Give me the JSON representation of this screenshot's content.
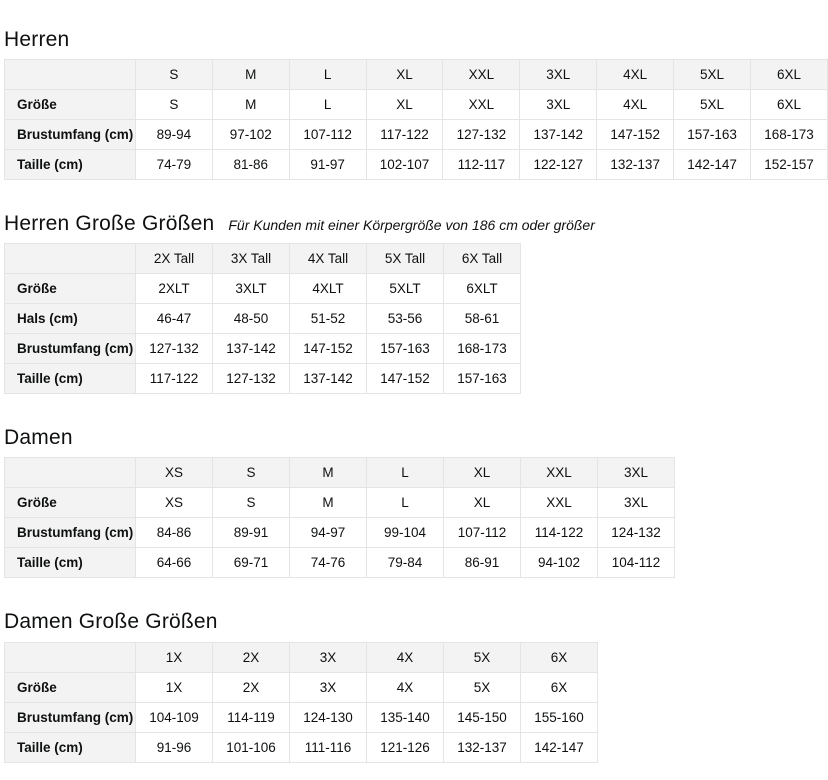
{
  "colors": {
    "header_bg": "#f3f3f3",
    "border": "#e4e4e4",
    "text": "#0f1111",
    "page_bg": "#ffffff"
  },
  "tables": [
    {
      "title": "Herren",
      "subtitle": "",
      "columns": [
        "S",
        "M",
        "L",
        "XL",
        "XXL",
        "3XL",
        "4XL",
        "5XL",
        "6XL"
      ],
      "rows": [
        {
          "label": "Größe",
          "values": [
            "S",
            "M",
            "L",
            "XL",
            "XXL",
            "3XL",
            "4XL",
            "5XL",
            "6XL"
          ]
        },
        {
          "label": "Brustumfang (cm)",
          "values": [
            "89-94",
            "97-102",
            "107-112",
            "117-122",
            "127-132",
            "137-142",
            "147-152",
            "157-163",
            "168-173"
          ]
        },
        {
          "label": "Taille (cm)",
          "values": [
            "74-79",
            "81-86",
            "91-97",
            "102-107",
            "112-117",
            "122-127",
            "132-137",
            "142-147",
            "152-157"
          ]
        }
      ]
    },
    {
      "title": "Herren Große Größen",
      "subtitle": "Für Kunden mit einer Körpergröße von 186 cm oder größer",
      "columns": [
        "2X Tall",
        "3X Tall",
        "4X Tall",
        "5X Tall",
        "6X Tall"
      ],
      "rows": [
        {
          "label": "Größe",
          "values": [
            "2XLT",
            "3XLT",
            "4XLT",
            "5XLT",
            "6XLT"
          ]
        },
        {
          "label": "Hals (cm)",
          "values": [
            "46-47",
            "48-50",
            "51-52",
            "53-56",
            "58-61"
          ]
        },
        {
          "label": "Brustumfang (cm)",
          "values": [
            "127-132",
            "137-142",
            "147-152",
            "157-163",
            "168-173"
          ]
        },
        {
          "label": "Taille (cm)",
          "values": [
            "117-122",
            "127-132",
            "137-142",
            "147-152",
            "157-163"
          ]
        }
      ]
    },
    {
      "title": "Damen",
      "subtitle": "",
      "columns": [
        "XS",
        "S",
        "M",
        "L",
        "XL",
        "XXL",
        "3XL"
      ],
      "rows": [
        {
          "label": "Größe",
          "values": [
            "XS",
            "S",
            "M",
            "L",
            "XL",
            "XXL",
            "3XL"
          ]
        },
        {
          "label": "Brustumfang (cm)",
          "values": [
            "84-86",
            "89-91",
            "94-97",
            "99-104",
            "107-112",
            "114-122",
            "124-132"
          ]
        },
        {
          "label": "Taille (cm)",
          "values": [
            "64-66",
            "69-71",
            "74-76",
            "79-84",
            "86-91",
            "94-102",
            "104-112"
          ]
        }
      ]
    },
    {
      "title": "Damen Große Größen",
      "subtitle": "",
      "columns": [
        "1X",
        "2X",
        "3X",
        "4X",
        "5X",
        "6X"
      ],
      "rows": [
        {
          "label": "Größe",
          "values": [
            "1X",
            "2X",
            "3X",
            "4X",
            "5X",
            "6X"
          ]
        },
        {
          "label": "Brustumfang (cm)",
          "values": [
            "104-109",
            "114-119",
            "124-130",
            "135-140",
            "145-150",
            "155-160"
          ]
        },
        {
          "label": "Taille (cm)",
          "values": [
            "91-96",
            "101-106",
            "111-116",
            "121-126",
            "132-137",
            "142-147"
          ]
        }
      ]
    }
  ]
}
